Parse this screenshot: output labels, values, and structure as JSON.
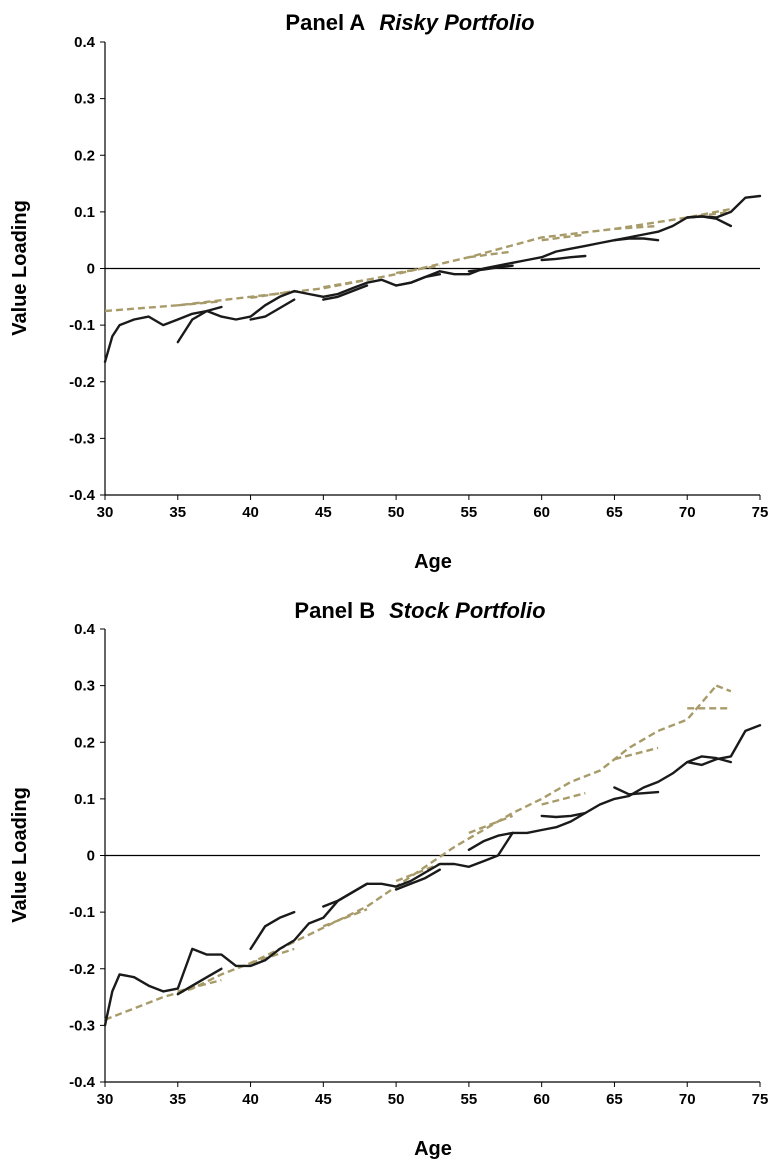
{
  "chart_data": [
    {
      "type": "line",
      "title": "Panel A",
      "subtitle": "Risky Portfolio",
      "xlabel": "Age",
      "ylabel": "Value Loading",
      "xlim": [
        30,
        75
      ],
      "ylim": [
        -0.4,
        0.4
      ],
      "x_ticks": [
        30,
        35,
        40,
        45,
        50,
        55,
        60,
        65,
        70,
        75
      ],
      "y_ticks": [
        -0.4,
        -0.3,
        -0.2,
        -0.1,
        0,
        0.1,
        0.2,
        0.3,
        0.4
      ],
      "reference_line_y": 0,
      "grid": false,
      "legend": "none",
      "colors": {
        "solid": "#1a1a1a",
        "dashed": "#a89b6a"
      },
      "series": [
        {
          "style": "solid",
          "x": [
            30,
            30.5,
            31,
            32,
            33,
            34,
            35,
            36,
            37,
            38,
            39,
            40,
            41,
            42,
            43,
            44,
            45,
            46,
            47,
            48,
            49,
            50,
            51,
            52,
            53,
            54,
            55,
            56,
            57,
            58,
            59,
            60,
            61,
            62,
            63,
            64,
            65,
            66,
            67,
            68,
            69,
            70,
            71,
            72,
            73,
            74,
            75
          ],
          "y": [
            -0.165,
            -0.12,
            -0.1,
            -0.09,
            -0.085,
            -0.1,
            -0.09,
            -0.08,
            -0.075,
            -0.085,
            -0.09,
            -0.085,
            -0.065,
            -0.05,
            -0.04,
            -0.045,
            -0.05,
            -0.045,
            -0.035,
            -0.025,
            -0.02,
            -0.03,
            -0.025,
            -0.015,
            -0.005,
            -0.01,
            -0.01,
            0.0,
            0.005,
            0.01,
            0.015,
            0.02,
            0.03,
            0.035,
            0.04,
            0.045,
            0.05,
            0.055,
            0.06,
            0.065,
            0.075,
            0.09,
            0.092,
            0.09,
            0.1,
            0.125,
            0.128
          ]
        },
        {
          "style": "solid",
          "x": [
            35,
            36,
            37,
            38
          ],
          "y": [
            -0.13,
            -0.09,
            -0.075,
            -0.068
          ]
        },
        {
          "style": "solid",
          "x": [
            40,
            41,
            42,
            43
          ],
          "y": [
            -0.09,
            -0.085,
            -0.07,
            -0.055
          ]
        },
        {
          "style": "solid",
          "x": [
            45,
            46,
            47,
            48
          ],
          "y": [
            -0.055,
            -0.05,
            -0.04,
            -0.03
          ]
        },
        {
          "style": "solid",
          "x": [
            50,
            51,
            52,
            53
          ],
          "y": [
            -0.03,
            -0.025,
            -0.015,
            -0.01
          ]
        },
        {
          "style": "solid",
          "x": [
            55,
            56,
            57,
            58
          ],
          "y": [
            -0.005,
            -0.002,
            0.002,
            0.005
          ]
        },
        {
          "style": "solid",
          "x": [
            60,
            61,
            62,
            63
          ],
          "y": [
            0.015,
            0.017,
            0.02,
            0.022
          ]
        },
        {
          "style": "solid",
          "x": [
            65,
            66,
            67,
            68
          ],
          "y": [
            0.05,
            0.053,
            0.053,
            0.05
          ]
        },
        {
          "style": "solid",
          "x": [
            70,
            71,
            72,
            73
          ],
          "y": [
            0.09,
            0.092,
            0.088,
            0.075
          ]
        },
        {
          "style": "dashed",
          "x": [
            30,
            35,
            40,
            45,
            50,
            55,
            60,
            65,
            70,
            73
          ],
          "y": [
            -0.075,
            -0.065,
            -0.05,
            -0.035,
            -0.01,
            0.02,
            0.055,
            0.07,
            0.09,
            0.105
          ]
        },
        {
          "style": "dashed",
          "x": [
            35,
            38
          ],
          "y": [
            -0.065,
            -0.058
          ]
        },
        {
          "style": "dashed",
          "x": [
            40,
            43
          ],
          "y": [
            -0.052,
            -0.04
          ]
        },
        {
          "style": "dashed",
          "x": [
            45,
            48
          ],
          "y": [
            -0.033,
            -0.02
          ]
        },
        {
          "style": "dashed",
          "x": [
            50,
            53
          ],
          "y": [
            -0.008,
            0.005
          ]
        },
        {
          "style": "dashed",
          "x": [
            55,
            58
          ],
          "y": [
            0.02,
            0.03
          ]
        },
        {
          "style": "dashed",
          "x": [
            60,
            63
          ],
          "y": [
            0.05,
            0.06
          ]
        },
        {
          "style": "dashed",
          "x": [
            65,
            68
          ],
          "y": [
            0.07,
            0.075
          ]
        },
        {
          "style": "dashed",
          "x": [
            70,
            73
          ],
          "y": [
            0.09,
            0.1
          ]
        }
      ]
    },
    {
      "type": "line",
      "title": "Panel B",
      "subtitle": "Stock Portfolio",
      "xlabel": "Age",
      "ylabel": "Value Loading",
      "xlim": [
        30,
        75
      ],
      "ylim": [
        -0.4,
        0.4
      ],
      "x_ticks": [
        30,
        35,
        40,
        45,
        50,
        55,
        60,
        65,
        70,
        75
      ],
      "y_ticks": [
        -0.4,
        -0.3,
        -0.2,
        -0.1,
        0,
        0.1,
        0.2,
        0.3,
        0.4
      ],
      "reference_line_y": 0,
      "grid": false,
      "legend": "none",
      "colors": {
        "solid": "#1a1a1a",
        "dashed": "#a89b6a"
      },
      "series": [
        {
          "style": "solid",
          "x": [
            30,
            30.5,
            31,
            32,
            33,
            34,
            35,
            36,
            37,
            38,
            39,
            40,
            41,
            42,
            43,
            44,
            45,
            46,
            47,
            48,
            49,
            50,
            51,
            52,
            53,
            54,
            55,
            56,
            57,
            58,
            59,
            60,
            61,
            62,
            63,
            64,
            65,
            66,
            67,
            68,
            69,
            70,
            71,
            72,
            73,
            74,
            75
          ],
          "y": [
            -0.3,
            -0.24,
            -0.21,
            -0.215,
            -0.23,
            -0.24,
            -0.235,
            -0.165,
            -0.175,
            -0.175,
            -0.195,
            -0.195,
            -0.185,
            -0.165,
            -0.15,
            -0.12,
            -0.11,
            -0.08,
            -0.065,
            -0.05,
            -0.05,
            -0.055,
            -0.045,
            -0.03,
            -0.015,
            -0.015,
            -0.02,
            -0.01,
            0.0,
            0.04,
            0.04,
            0.045,
            0.05,
            0.06,
            0.075,
            0.09,
            0.1,
            0.105,
            0.12,
            0.13,
            0.145,
            0.165,
            0.16,
            0.17,
            0.175,
            0.22,
            0.23
          ]
        },
        {
          "style": "solid",
          "x": [
            35,
            36,
            37,
            38
          ],
          "y": [
            -0.245,
            -0.23,
            -0.215,
            -0.2
          ]
        },
        {
          "style": "solid",
          "x": [
            40,
            41,
            42,
            43
          ],
          "y": [
            -0.165,
            -0.125,
            -0.11,
            -0.1
          ]
        },
        {
          "style": "solid",
          "x": [
            45,
            46,
            47,
            48
          ],
          "y": [
            -0.09,
            -0.08,
            -0.065,
            -0.05
          ]
        },
        {
          "style": "solid",
          "x": [
            50,
            51,
            52,
            53
          ],
          "y": [
            -0.06,
            -0.05,
            -0.04,
            -0.025
          ]
        },
        {
          "style": "solid",
          "x": [
            55,
            56,
            57,
            58
          ],
          "y": [
            0.01,
            0.025,
            0.035,
            0.04
          ]
        },
        {
          "style": "solid",
          "x": [
            60,
            61,
            62,
            63
          ],
          "y": [
            0.07,
            0.068,
            0.07,
            0.075
          ]
        },
        {
          "style": "solid",
          "x": [
            65,
            66,
            67,
            68
          ],
          "y": [
            0.12,
            0.108,
            0.11,
            0.112
          ]
        },
        {
          "style": "solid",
          "x": [
            70,
            71,
            72,
            73
          ],
          "y": [
            0.165,
            0.175,
            0.172,
            0.165
          ]
        },
        {
          "style": "dashed",
          "x": [
            30,
            32,
            34,
            36,
            38,
            40,
            42,
            44,
            46,
            48,
            50,
            52,
            54,
            56,
            58,
            60,
            62,
            64,
            66,
            68,
            70,
            72
          ],
          "y": [
            -0.29,
            -0.27,
            -0.25,
            -0.235,
            -0.21,
            -0.19,
            -0.165,
            -0.14,
            -0.115,
            -0.09,
            -0.055,
            -0.02,
            0.015,
            0.045,
            0.075,
            0.1,
            0.13,
            0.15,
            0.19,
            0.22,
            0.24,
            0.3
          ]
        },
        {
          "style": "dashed",
          "x": [
            35,
            38
          ],
          "y": [
            -0.24,
            -0.22
          ]
        },
        {
          "style": "dashed",
          "x": [
            40,
            43
          ],
          "y": [
            -0.19,
            -0.165
          ]
        },
        {
          "style": "dashed",
          "x": [
            45,
            48
          ],
          "y": [
            -0.125,
            -0.095
          ]
        },
        {
          "style": "dashed",
          "x": [
            50,
            53
          ],
          "y": [
            -0.045,
            -0.015
          ]
        },
        {
          "style": "dashed",
          "x": [
            55,
            58
          ],
          "y": [
            0.04,
            0.07
          ]
        },
        {
          "style": "dashed",
          "x": [
            60,
            63
          ],
          "y": [
            0.09,
            0.11
          ]
        },
        {
          "style": "dashed",
          "x": [
            65,
            68
          ],
          "y": [
            0.17,
            0.19
          ]
        },
        {
          "style": "dashed",
          "x": [
            70,
            73
          ],
          "y": [
            0.26,
            0.26
          ]
        },
        {
          "style": "dashed",
          "x": [
            72,
            73
          ],
          "y": [
            0.3,
            0.29
          ]
        }
      ]
    }
  ]
}
